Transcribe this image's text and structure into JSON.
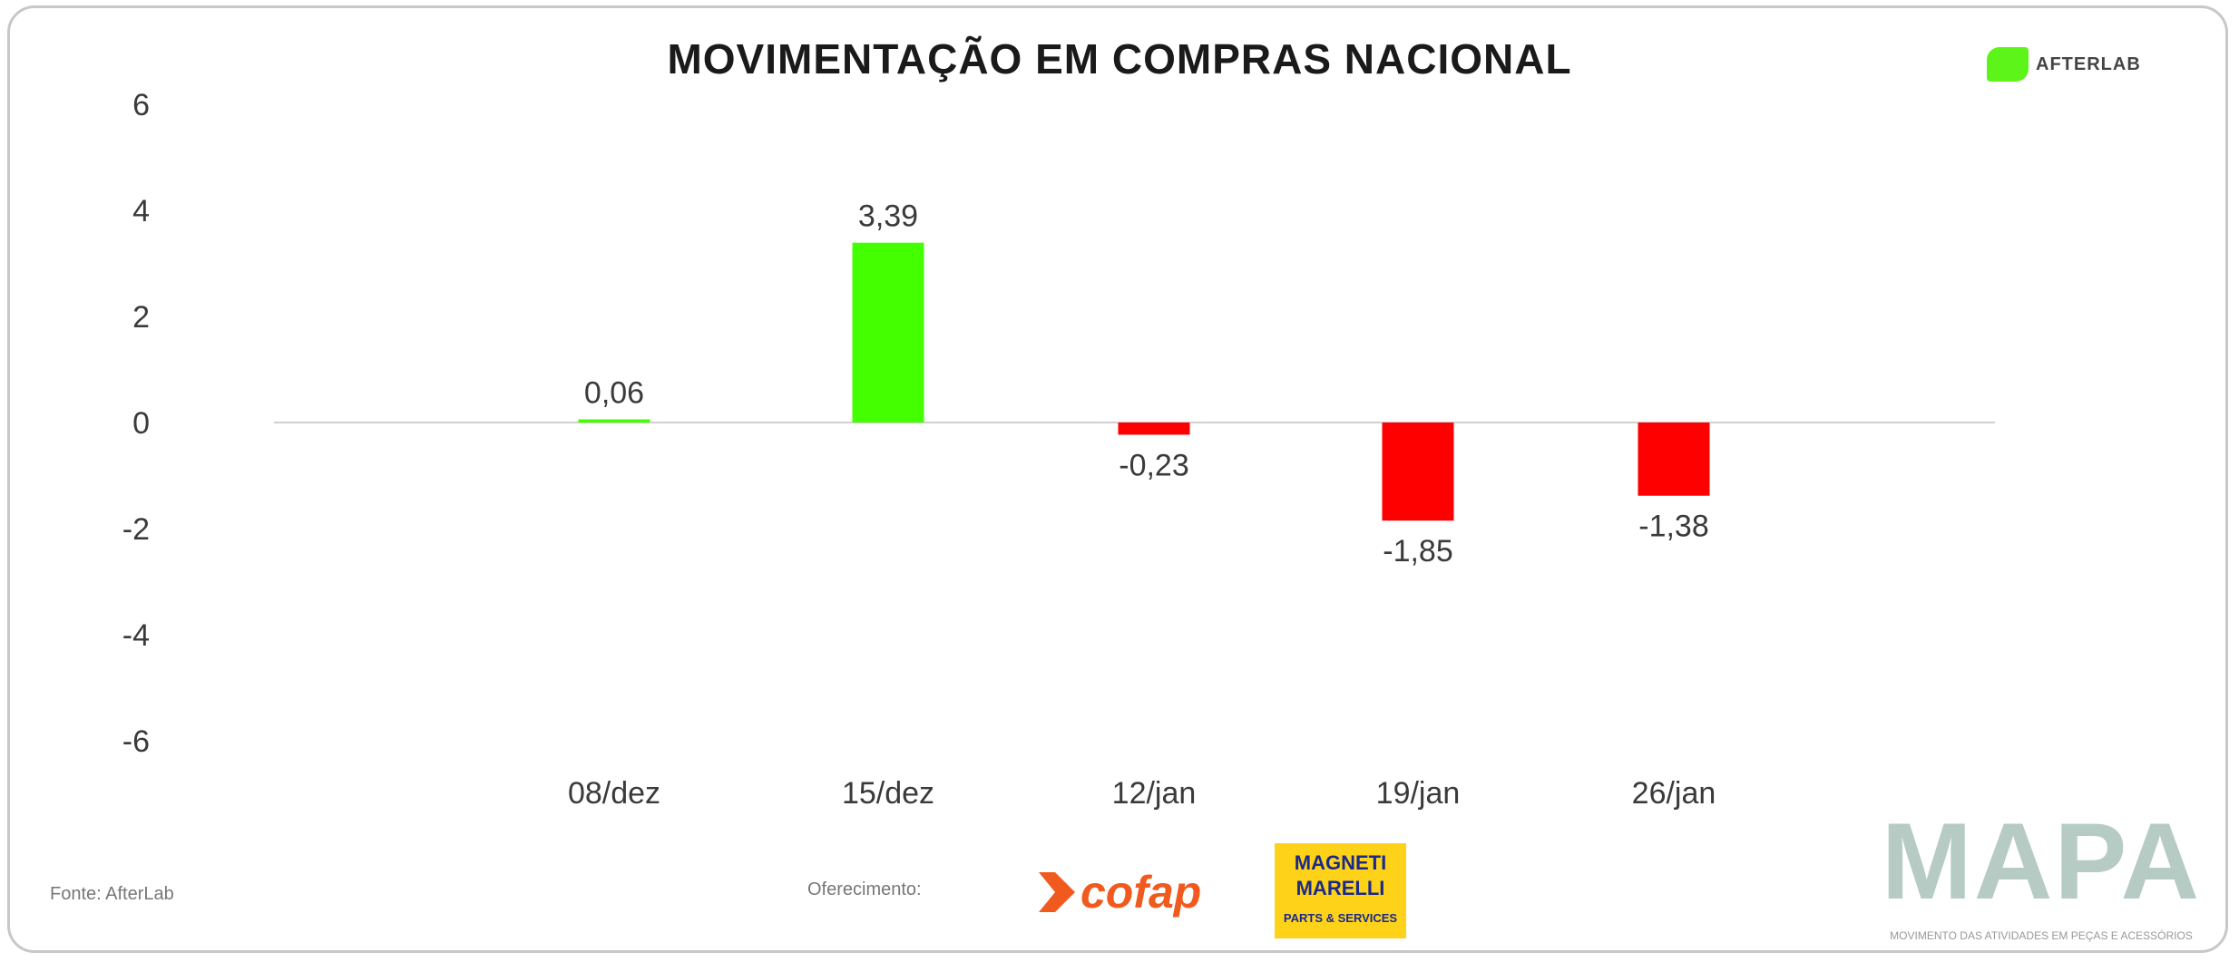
{
  "title": "MOVIMENTAÇÃO EM COMPRAS NACIONAL",
  "brand_logo": "AFTERLAB",
  "footer": {
    "source": "Fonte: AfterLab",
    "offered_by": "Oferecimento:",
    "sponsors": [
      "cofap",
      "MAGNETI MARELLI",
      "PARTS & SERVICES"
    ],
    "mapa_title": "MAPA",
    "mapa_subtitle": "MOVIMENTO DAS ATIVIDADES EM PEÇAS E ACESSÓRIOS"
  },
  "colors": {
    "positive": "#44ff00",
    "negative": "#ff0000",
    "accent": "#5df41a"
  },
  "chart_data": {
    "type": "bar",
    "title": "MOVIMENTAÇÃO EM COMPRAS NACIONAL",
    "categories": [
      "08/dez",
      "15/dez",
      "12/jan",
      "19/jan",
      "26/jan"
    ],
    "values": [
      0.06,
      3.39,
      -0.23,
      -1.85,
      -1.38
    ],
    "data_labels": [
      "0,06",
      "3,39",
      "-0,23",
      "-1,85",
      "-1,38"
    ],
    "yticks": [
      6,
      4,
      2,
      0,
      -2,
      -4,
      -6
    ],
    "ylim": [
      -6,
      6
    ],
    "xlabel": "",
    "ylabel": "",
    "grid": false,
    "legend": "none"
  }
}
